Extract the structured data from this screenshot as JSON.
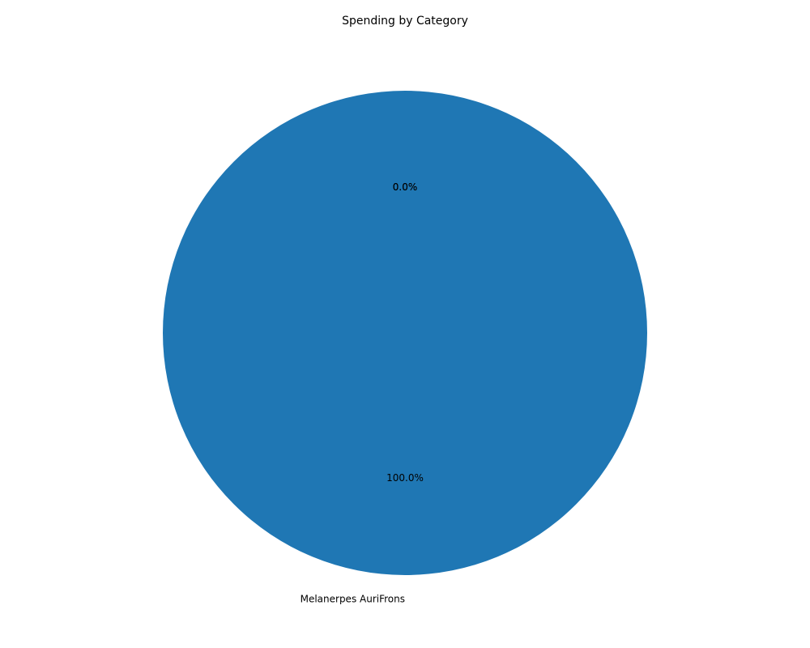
{
  "chart_data": {
    "type": "pie",
    "title": "Spending by Category",
    "slices": [
      {
        "label": "Melanerpes AuriFrons",
        "value": 100.0,
        "pct_label": "100.0%",
        "color": "#1f77b4"
      },
      {
        "label": "",
        "value": 0.0,
        "pct_label": "0.0%",
        "color": "#ff7f0e"
      },
      {
        "label": "",
        "value": 0.0,
        "pct_label": "0.0%",
        "color": "#2ca02c"
      }
    ],
    "start_angle_deg": 90,
    "counterclock": true,
    "legend": "none"
  }
}
